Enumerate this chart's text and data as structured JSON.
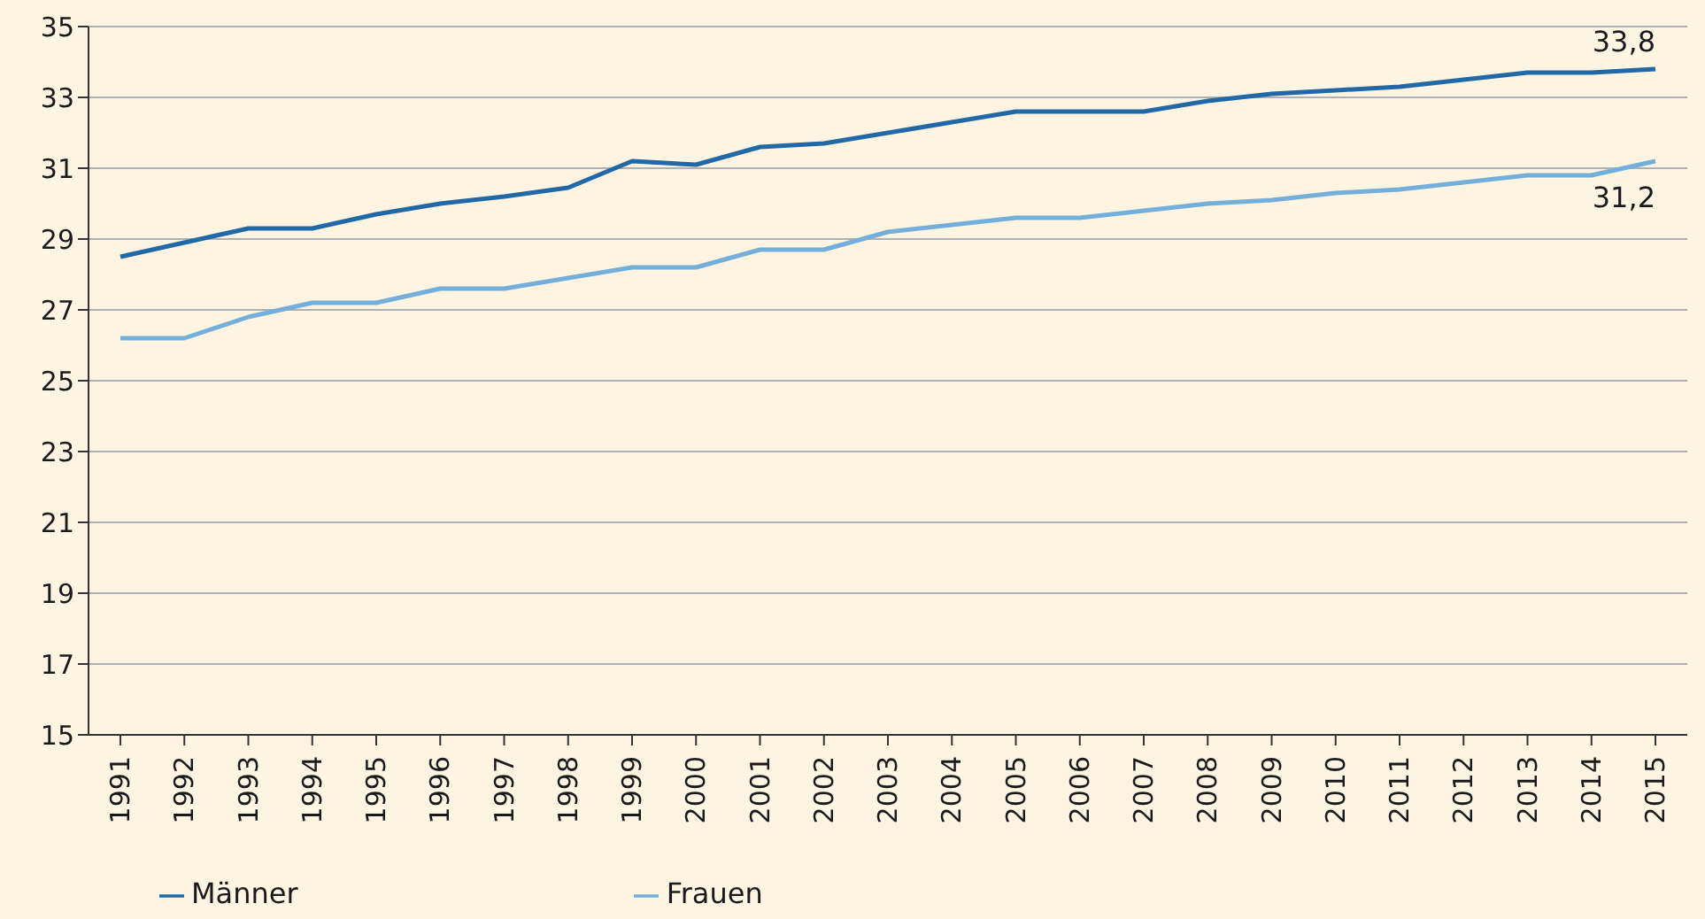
{
  "chart_data": {
    "type": "line",
    "categories": [
      "1991",
      "1992",
      "1993",
      "1994",
      "1995",
      "1996",
      "1997",
      "1998",
      "1999",
      "2000",
      "2001",
      "2002",
      "2003",
      "2004",
      "2005",
      "2006",
      "2007",
      "2008",
      "2009",
      "2010",
      "2011",
      "2012",
      "2013",
      "2014",
      "2015"
    ],
    "series": [
      {
        "name": "Männer",
        "color": "#2168a6",
        "values": [
          28.5,
          28.9,
          29.3,
          29.3,
          29.7,
          30.0,
          30.2,
          30.45,
          31.2,
          31.1,
          31.6,
          31.7,
          32.0,
          32.3,
          32.6,
          32.6,
          32.6,
          32.9,
          33.1,
          33.2,
          33.3,
          33.5,
          33.7,
          33.7,
          33.8
        ],
        "value_labels": [
          null,
          null,
          null,
          null,
          null,
          null,
          null,
          null,
          null,
          null,
          null,
          null,
          null,
          null,
          null,
          null,
          null,
          null,
          null,
          null,
          null,
          null,
          null,
          null,
          "33,8"
        ]
      },
      {
        "name": "Frauen",
        "color": "#74afd9",
        "values": [
          26.2,
          26.2,
          26.8,
          27.2,
          27.2,
          27.6,
          27.6,
          27.9,
          28.2,
          28.2,
          28.7,
          28.7,
          29.2,
          29.4,
          29.6,
          29.6,
          29.8,
          30.0,
          30.1,
          30.3,
          30.4,
          30.6,
          30.8,
          30.8,
          31.2
        ],
        "value_labels": [
          null,
          null,
          null,
          null,
          null,
          null,
          null,
          null,
          null,
          null,
          null,
          null,
          null,
          null,
          null,
          null,
          null,
          null,
          null,
          null,
          null,
          null,
          null,
          null,
          "31,2"
        ]
      }
    ],
    "ylim": [
      15,
      35
    ],
    "yticks": [
      15,
      17,
      19,
      21,
      23,
      25,
      27,
      29,
      31,
      33,
      35
    ],
    "grid": "y",
    "legend": "bottom left",
    "marker": "none",
    "line_style": "solid"
  }
}
